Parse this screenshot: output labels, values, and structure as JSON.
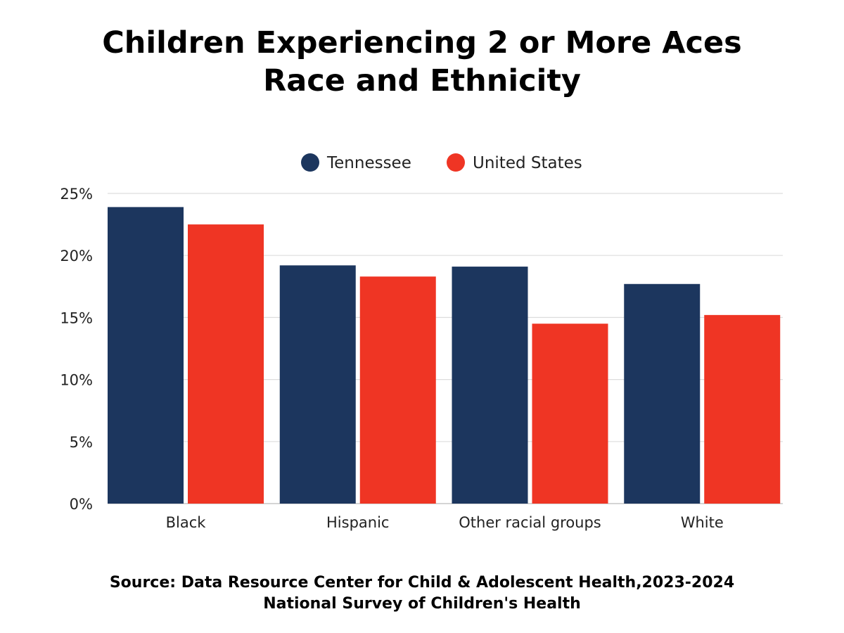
{
  "chart_data": {
    "type": "bar",
    "title": [
      "Children Experiencing 2 or More Aces",
      "Race and Ethnicity"
    ],
    "categories": [
      "Black",
      "Hispanic",
      "Other racial groups",
      "White"
    ],
    "series": [
      {
        "name": "Tennessee",
        "color": "#1c365e",
        "values": [
          23.9,
          19.2,
          19.1,
          17.7
        ]
      },
      {
        "name": "United States",
        "color": "#ef3524",
        "values": [
          22.5,
          18.3,
          14.5,
          15.2
        ]
      }
    ],
    "ylim": [
      0,
      25
    ],
    "yticks": [
      "0%",
      "5%",
      "10%",
      "15%",
      "20%",
      "25%"
    ],
    "unit": "%",
    "grid": true,
    "legend": "top-center",
    "source": [
      "Source: Data Resource Center for Child & Adolescent Health,2023-2024",
      "National Survey of Children's Health"
    ]
  }
}
